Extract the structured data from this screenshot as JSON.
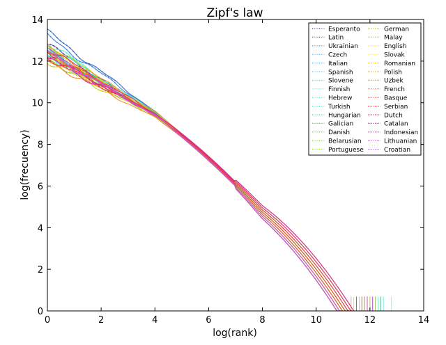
{
  "chart_data": {
    "type": "line",
    "title": "Zipf's law",
    "xlabel": "log(rank)",
    "ylabel": "log(frecuency)",
    "xlim": [
      0,
      14
    ],
    "ylim": [
      0,
      14
    ],
    "x_ticks": [
      0,
      2,
      4,
      6,
      8,
      10,
      12,
      14
    ],
    "y_ticks": [
      0,
      2,
      4,
      6,
      8,
      10,
      12,
      14
    ],
    "grid": false,
    "legend_position": "top-right",
    "legend_columns": 2,
    "series": [
      {
        "name": "Esperanto",
        "color": "#3a3aa8",
        "y0": 12.8,
        "xend": 12.1
      },
      {
        "name": "Latin",
        "color": "#2c5fbf",
        "y0": 13.4,
        "xend": 12.4
      },
      {
        "name": "Ukrainian",
        "color": "#3f7fd8",
        "y0": 13.2,
        "xend": 12.2
      },
      {
        "name": "Czech",
        "color": "#4aa0e8",
        "y0": 12.6,
        "xend": 11.9
      },
      {
        "name": "Italian",
        "color": "#52b8f0",
        "y0": 12.5,
        "xend": 11.8
      },
      {
        "name": "Spanish",
        "color": "#3fd0e8",
        "y0": 12.3,
        "xend": 12.0
      },
      {
        "name": "Slovene",
        "color": "#2ee6e0",
        "y0": 12.7,
        "xend": 12.5
      },
      {
        "name": "Finnish",
        "color": "#52f0d6",
        "y0": 12.9,
        "xend": 12.8
      },
      {
        "name": "Hebrew",
        "color": "#3ae8b0",
        "y0": 12.4,
        "xend": 11.7
      },
      {
        "name": "Turkish",
        "color": "#40e0a0",
        "y0": 12.2,
        "xend": 12.3
      },
      {
        "name": "Hungarian",
        "color": "#3fd878",
        "y0": 12.6,
        "xend": 12.4
      },
      {
        "name": "Galician",
        "color": "#3cc848",
        "y0": 12.3,
        "xend": 11.6
      },
      {
        "name": "Danish",
        "color": "#52c830",
        "y0": 12.5,
        "xend": 11.9
      },
      {
        "name": "Belarusian",
        "color": "#78d020",
        "y0": 12.1,
        "xend": 11.5
      },
      {
        "name": "Portuguese",
        "color": "#9ad828",
        "y0": 12.4,
        "xend": 11.8
      },
      {
        "name": "German",
        "color": "#bcd020",
        "y0": 12.8,
        "xend": 12.2
      },
      {
        "name": "Malay",
        "color": "#d6c81c",
        "y0": 12.0,
        "xend": 11.4
      },
      {
        "name": "English",
        "color": "#e8e020",
        "y0": 12.2,
        "xend": 11.6
      },
      {
        "name": "Slovak",
        "color": "#f2e830",
        "y0": 12.6,
        "xend": 11.9
      },
      {
        "name": "Romanian",
        "color": "#f0c820",
        "y0": 12.3,
        "xend": 11.7
      },
      {
        "name": "Polish",
        "color": "#f0a020",
        "y0": 12.7,
        "xend": 12.0
      },
      {
        "name": "Uzbek",
        "color": "#f08828",
        "y0": 12.0,
        "xend": 11.3
      },
      {
        "name": "French",
        "color": "#f06a20",
        "y0": 12.5,
        "xend": 11.8
      },
      {
        "name": "Basque",
        "color": "#f05020",
        "y0": 12.4,
        "xend": 11.9
      },
      {
        "name": "Serbian",
        "color": "#e84030",
        "y0": 12.2,
        "xend": 11.5
      },
      {
        "name": "Dutch",
        "color": "#e83050",
        "y0": 12.6,
        "xend": 11.9
      },
      {
        "name": "Catalan",
        "color": "#e82080",
        "y0": 12.3,
        "xend": 11.7
      },
      {
        "name": "Indonesian",
        "color": "#e020b0",
        "y0": 12.1,
        "xend": 11.5
      },
      {
        "name": "Lithuanian",
        "color": "#d040d8",
        "y0": 12.5,
        "xend": 12.1
      },
      {
        "name": "Croatian",
        "color": "#c060e8",
        "y0": 12.4,
        "xend": 11.9
      }
    ]
  }
}
